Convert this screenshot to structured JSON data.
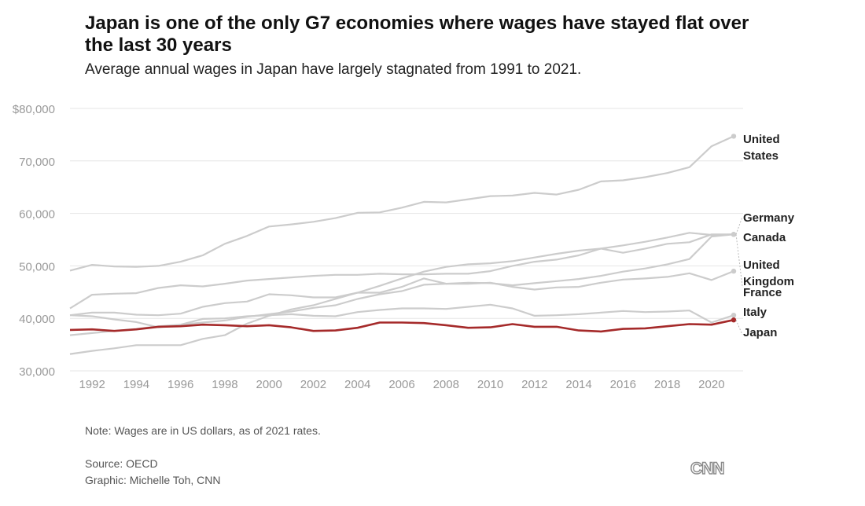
{
  "header": {
    "title": "Japan is one of the only G7 economies where wages have stayed flat over the last 30 years",
    "subtitle": "Average annual wages in Japan have largely stagnated from 1991 to 2021."
  },
  "footer": {
    "note": "Note: Wages are in US dollars, as of 2021 rates.",
    "source": "Source: OECD",
    "credit": "Graphic: Michelle Toh, CNN",
    "logo": "CNN"
  },
  "colors": {
    "highlight": "#a52a2a",
    "muted": "#cccccc",
    "grid": "#e6e6e6",
    "tick": "#999999"
  },
  "chart_data": {
    "type": "line",
    "title": "Japan is one of the only G7 economies where wages have stayed flat over the last 30 years",
    "subtitle": "Average annual wages in Japan have largely stagnated from 1991 to 2021.",
    "xlabel": "",
    "ylabel": "",
    "ylim": [
      30000,
      80000
    ],
    "xlim": [
      1991,
      2021
    ],
    "grid": true,
    "legend": "direct labels at right end of lines",
    "y_ticks": [
      30000,
      40000,
      50000,
      60000,
      70000,
      80000
    ],
    "y_tick_labels": [
      "30,000",
      "40,000",
      "50,000",
      "60,000",
      "70,000",
      "$80,000"
    ],
    "x_ticks": [
      1992,
      1994,
      1996,
      1998,
      2000,
      2002,
      2004,
      2006,
      2008,
      2010,
      2012,
      2014,
      2016,
      2018,
      2020
    ],
    "x_tick_labels": [
      "1992",
      "1994",
      "1996",
      "1998",
      "2000",
      "2002",
      "2004",
      "2006",
      "2008",
      "2010",
      "2012",
      "2014",
      "2016",
      "2018",
      "2020"
    ],
    "x": [
      1991,
      1992,
      1993,
      1994,
      1995,
      1996,
      1997,
      1998,
      1999,
      2000,
      2001,
      2002,
      2003,
      2004,
      2005,
      2006,
      2007,
      2008,
      2009,
      2010,
      2011,
      2012,
      2013,
      2014,
      2015,
      2016,
      2017,
      2018,
      2019,
      2020,
      2021
    ],
    "series": [
      {
        "name": "United States",
        "label_lines": [
          "United",
          "States"
        ],
        "highlight": false,
        "values": [
          49100,
          50200,
          49900,
          49800,
          50000,
          50800,
          52000,
          54200,
          55700,
          57500,
          57900,
          58400,
          59100,
          60100,
          60200,
          61100,
          62200,
          62100,
          62700,
          63300,
          63400,
          63900,
          63600,
          64500,
          66100,
          66300,
          66900,
          67700,
          68800,
          72800,
          74700
        ]
      },
      {
        "name": "Germany",
        "label_lines": [
          "Germany"
        ],
        "highlight": false,
        "values": [
          41900,
          44500,
          44700,
          44800,
          45800,
          46300,
          46100,
          46600,
          47200,
          47500,
          47800,
          48100,
          48300,
          48300,
          48500,
          48400,
          48400,
          48500,
          48500,
          49000,
          50000,
          50800,
          51200,
          52000,
          53300,
          53900,
          54600,
          55400,
          56300,
          55900,
          56000
        ]
      },
      {
        "name": "Canada",
        "label_lines": [
          "Canada"
        ],
        "highlight": false,
        "values": [
          36800,
          37200,
          37600,
          38000,
          38500,
          38800,
          39200,
          39600,
          40300,
          40800,
          41300,
          42000,
          42500,
          43700,
          44600,
          45200,
          46400,
          46600,
          46800,
          46700,
          46300,
          46700,
          47100,
          47500,
          48100,
          48900,
          49500,
          50300,
          51300,
          55600,
          56000
        ]
      },
      {
        "name": "United Kingdom",
        "label_lines": [
          "United",
          "Kingdom"
        ],
        "highlight": false,
        "values": [
          33200,
          33800,
          34300,
          34900,
          34900,
          34900,
          36100,
          36800,
          39000,
          40500,
          41700,
          42500,
          43700,
          44900,
          46200,
          47600,
          48900,
          49800,
          50300,
          50500,
          50900,
          51600,
          52300,
          52900,
          53300,
          52500,
          53300,
          54200,
          54500,
          56000,
          56000
        ]
      },
      {
        "name": "France",
        "label_lines": [
          "France"
        ],
        "highlight": false,
        "values": [
          40600,
          41100,
          41100,
          40700,
          40600,
          40900,
          42200,
          42900,
          43200,
          44600,
          44400,
          44000,
          44000,
          44900,
          44900,
          46000,
          47600,
          46600,
          46600,
          46800,
          46000,
          45500,
          45900,
          46000,
          46800,
          47400,
          47600,
          47900,
          48600,
          47300,
          49000
        ]
      },
      {
        "name": "Italy",
        "label_lines": [
          "Italy"
        ],
        "highlight": false,
        "values": [
          40600,
          40400,
          39800,
          39300,
          38300,
          38800,
          39900,
          40000,
          40400,
          40600,
          40800,
          40500,
          40400,
          41200,
          41600,
          41900,
          41900,
          41800,
          42200,
          42600,
          41900,
          40500,
          40600,
          40800,
          41100,
          41400,
          41200,
          41300,
          41500,
          39200,
          40600
        ]
      },
      {
        "name": "Japan",
        "label_lines": [
          "Japan"
        ],
        "highlight": true,
        "values": [
          37800,
          37900,
          37600,
          37900,
          38400,
          38500,
          38800,
          38700,
          38500,
          38700,
          38300,
          37600,
          37700,
          38200,
          39200,
          39200,
          39100,
          38700,
          38200,
          38300,
          38900,
          38400,
          38400,
          37700,
          37500,
          38000,
          38100,
          38500,
          38900,
          38800,
          39700
        ]
      }
    ]
  }
}
